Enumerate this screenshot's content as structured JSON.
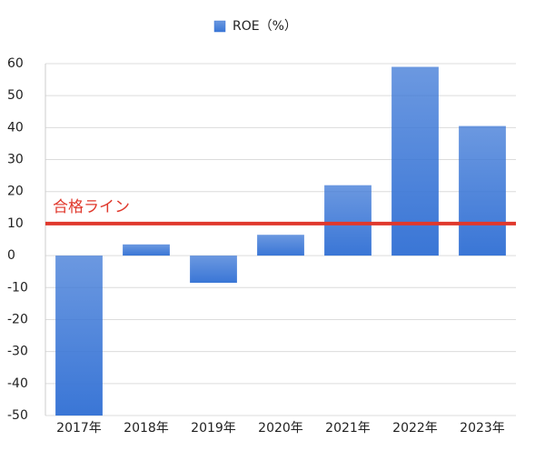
{
  "chart_data": {
    "type": "bar",
    "categories": [
      "2017年",
      "2018年",
      "2019年",
      "2020年",
      "2021年",
      "2022年",
      "2023年"
    ],
    "series": [
      {
        "name": "ROE（%）",
        "color": "#3a76d6",
        "values": [
          -50,
          3.5,
          -8.5,
          6.5,
          22,
          59,
          40.5
        ]
      }
    ],
    "ylim": [
      -50,
      60
    ],
    "yticks": [
      -50,
      -40,
      -30,
      -20,
      -10,
      0,
      10,
      20,
      30,
      40,
      50,
      60
    ],
    "grid": true,
    "reference_line": {
      "value": 10,
      "label": "合格ライン",
      "color": "#e0382c"
    },
    "legend": "top"
  }
}
